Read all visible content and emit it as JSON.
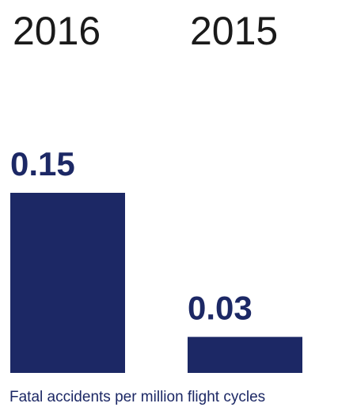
{
  "chart_data": {
    "type": "bar",
    "categories": [
      "2016",
      "2015"
    ],
    "values": [
      0.15,
      0.03
    ],
    "color": "#1c2865",
    "xlabel": "Fatal accidents per million flight cycles"
  }
}
